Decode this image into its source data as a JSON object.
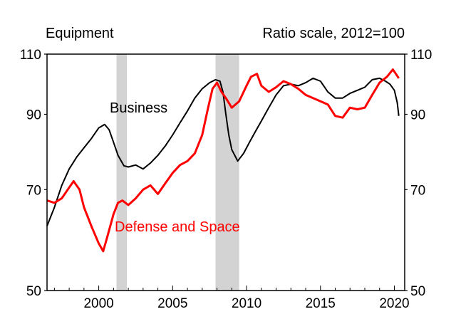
{
  "chart_data": {
    "type": "line",
    "title": "Equipment",
    "subtitle": "Ratio scale, 2012=100",
    "y_scale": "log",
    "ylim": [
      50,
      110
    ],
    "xlim": [
      1996.5,
      2020.7
    ],
    "y_ticks": [
      50,
      70,
      90,
      110
    ],
    "x_ticks": [
      2000,
      2005,
      2010,
      2015,
      2020
    ],
    "recessions": [
      [
        2001.2,
        2001.9
      ],
      [
        2007.9,
        2009.5
      ]
    ],
    "series": [
      {
        "name": "Business",
        "color": "#000000",
        "points": [
          [
            1996.5,
            62.0
          ],
          [
            1997.0,
            66.0
          ],
          [
            1997.5,
            71.0
          ],
          [
            1998.0,
            75.0
          ],
          [
            1998.5,
            78.0
          ],
          [
            1999.0,
            80.5
          ],
          [
            1999.5,
            83.0
          ],
          [
            2000.0,
            86.0
          ],
          [
            2000.4,
            87.0
          ],
          [
            2000.7,
            85.5
          ],
          [
            2001.0,
            82.0
          ],
          [
            2001.3,
            78.5
          ],
          [
            2001.7,
            75.8
          ],
          [
            2002.0,
            75.5
          ],
          [
            2002.5,
            76.0
          ],
          [
            2003.0,
            75.0
          ],
          [
            2003.5,
            76.5
          ],
          [
            2004.0,
            78.5
          ],
          [
            2004.5,
            81.0
          ],
          [
            2005.0,
            84.0
          ],
          [
            2005.5,
            87.5
          ],
          [
            2006.0,
            91.0
          ],
          [
            2006.5,
            95.0
          ],
          [
            2007.0,
            98.0
          ],
          [
            2007.5,
            100.0
          ],
          [
            2007.9,
            101.0
          ],
          [
            2008.2,
            100.5
          ],
          [
            2008.4,
            97.0
          ],
          [
            2008.6,
            90.0
          ],
          [
            2008.8,
            84.0
          ],
          [
            2009.0,
            80.0
          ],
          [
            2009.4,
            77.0
          ],
          [
            2009.8,
            79.0
          ],
          [
            2010.2,
            82.0
          ],
          [
            2010.6,
            85.0
          ],
          [
            2011.0,
            88.0
          ],
          [
            2011.5,
            92.0
          ],
          [
            2012.0,
            96.0
          ],
          [
            2012.5,
            99.0
          ],
          [
            2013.0,
            99.5
          ],
          [
            2013.5,
            99.0
          ],
          [
            2014.0,
            100.0
          ],
          [
            2014.5,
            101.5
          ],
          [
            2015.0,
            100.5
          ],
          [
            2015.5,
            97.0
          ],
          [
            2016.0,
            95.0
          ],
          [
            2016.5,
            95.0
          ],
          [
            2017.0,
            96.5
          ],
          [
            2017.5,
            97.5
          ],
          [
            2018.0,
            98.5
          ],
          [
            2018.5,
            101.0
          ],
          [
            2019.0,
            101.5
          ],
          [
            2019.4,
            100.5
          ],
          [
            2019.7,
            99.5
          ],
          [
            2020.0,
            97.5
          ],
          [
            2020.2,
            93.5
          ],
          [
            2020.3,
            89.5
          ]
        ]
      },
      {
        "name": "Defense and Space",
        "color": "#ff0000",
        "points": [
          [
            1996.5,
            67.5
          ],
          [
            1997.0,
            67.0
          ],
          [
            1997.5,
            68.0
          ],
          [
            1998.0,
            70.5
          ],
          [
            1998.3,
            72.0
          ],
          [
            1998.7,
            70.0
          ],
          [
            1999.0,
            66.0
          ],
          [
            1999.5,
            62.0
          ],
          [
            2000.0,
            58.5
          ],
          [
            2000.3,
            57.0
          ],
          [
            2000.6,
            60.0
          ],
          [
            2001.0,
            64.5
          ],
          [
            2001.3,
            67.0
          ],
          [
            2001.6,
            67.5
          ],
          [
            2002.0,
            66.5
          ],
          [
            2002.5,
            68.0
          ],
          [
            2003.0,
            70.0
          ],
          [
            2003.5,
            71.0
          ],
          [
            2004.0,
            69.0
          ],
          [
            2004.5,
            71.5
          ],
          [
            2005.0,
            74.0
          ],
          [
            2005.5,
            76.0
          ],
          [
            2006.0,
            77.0
          ],
          [
            2006.5,
            79.0
          ],
          [
            2007.0,
            84.0
          ],
          [
            2007.4,
            92.0
          ],
          [
            2007.7,
            98.0
          ],
          [
            2008.0,
            100.0
          ],
          [
            2008.3,
            97.0
          ],
          [
            2008.6,
            95.0
          ],
          [
            2009.0,
            92.0
          ],
          [
            2009.5,
            94.0
          ],
          [
            2010.0,
            99.0
          ],
          [
            2010.3,
            102.0
          ],
          [
            2010.7,
            103.0
          ],
          [
            2011.0,
            99.0
          ],
          [
            2011.5,
            97.0
          ],
          [
            2012.0,
            98.5
          ],
          [
            2012.5,
            100.5
          ],
          [
            2013.0,
            99.5
          ],
          [
            2013.5,
            98.0
          ],
          [
            2014.0,
            96.0
          ],
          [
            2014.5,
            95.0
          ],
          [
            2015.0,
            94.0
          ],
          [
            2015.5,
            93.0
          ],
          [
            2016.0,
            89.5
          ],
          [
            2016.5,
            89.0
          ],
          [
            2017.0,
            92.0
          ],
          [
            2017.5,
            91.5
          ],
          [
            2018.0,
            92.0
          ],
          [
            2018.5,
            96.0
          ],
          [
            2019.0,
            100.0
          ],
          [
            2019.5,
            102.0
          ],
          [
            2019.9,
            104.5
          ],
          [
            2020.1,
            103.0
          ],
          [
            2020.3,
            101.5
          ]
        ]
      }
    ]
  }
}
